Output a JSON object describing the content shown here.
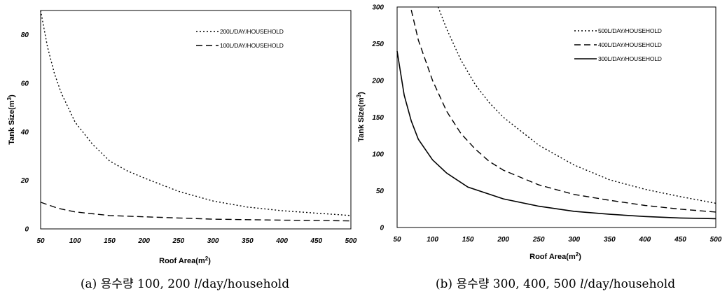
{
  "chart_data": [
    {
      "type": "line",
      "caption": "(a) 용수량 100, 200 l/day/household",
      "xlabel": "Roof Area(m²)",
      "ylabel": "Tank Size(m³)",
      "xlim": [
        50,
        500
      ],
      "ylim": [
        0,
        90
      ],
      "x_ticks": [
        50,
        100,
        150,
        200,
        250,
        300,
        350,
        400,
        450,
        500
      ],
      "y_ticks": [
        0,
        20,
        40,
        60,
        80
      ],
      "grid": false,
      "legend_position": "top-right",
      "series": [
        {
          "name": "200L/DAY/HOUSEHOLD",
          "style": "dotted",
          "x": [
            50,
            60,
            70,
            80,
            100,
            125,
            150,
            175,
            200,
            250,
            300,
            350,
            400,
            450,
            500
          ],
          "y": [
            90,
            75,
            64,
            56,
            44,
            35,
            28,
            24,
            21,
            15.5,
            11.5,
            9,
            7.5,
            6.5,
            5.5
          ]
        },
        {
          "name": "100L/DAY/HOUSEHOLD",
          "style": "dashed",
          "x": [
            50,
            75,
            100,
            150,
            200,
            250,
            300,
            350,
            400,
            450,
            500
          ],
          "y": [
            11,
            8.5,
            7,
            5.5,
            5,
            4.5,
            4,
            3.8,
            3.6,
            3.5,
            3.3
          ]
        }
      ]
    },
    {
      "type": "line",
      "caption": "(b) 용수량 300, 400, 500 l/day/household",
      "xlabel": "Roof Area(m²)",
      "ylabel": "Tank Size(m³)",
      "xlim": [
        50,
        500
      ],
      "ylim": [
        0,
        300
      ],
      "x_ticks": [
        50,
        100,
        150,
        200,
        250,
        300,
        350,
        400,
        450,
        500
      ],
      "y_ticks": [
        0,
        50,
        100,
        150,
        200,
        250,
        300
      ],
      "grid": false,
      "legend_position": "top-right",
      "series": [
        {
          "name": "500L/DAY/HOUSEHOLD",
          "style": "dotted",
          "x": [
            108,
            120,
            140,
            160,
            180,
            200,
            250,
            300,
            350,
            400,
            450,
            500
          ],
          "y": [
            300,
            270,
            228,
            195,
            170,
            150,
            112,
            85,
            65,
            52,
            42,
            33
          ]
        },
        {
          "name": "400L/DAY/HOUSEHOLD",
          "style": "dashed",
          "x": [
            70,
            80,
            100,
            120,
            140,
            160,
            180,
            200,
            250,
            300,
            350,
            400,
            450,
            500
          ],
          "y": [
            296,
            255,
            200,
            158,
            128,
            107,
            90,
            78,
            58,
            45,
            37,
            30,
            25,
            21
          ]
        },
        {
          "name": "300L/DAY/HOUSEHOLD",
          "style": "solid",
          "x": [
            50,
            60,
            70,
            80,
            100,
            120,
            150,
            200,
            250,
            300,
            350,
            400,
            450,
            500
          ],
          "y": [
            240,
            180,
            145,
            120,
            92,
            74,
            55,
            39,
            29,
            22,
            18,
            15,
            13,
            12
          ]
        }
      ]
    }
  ]
}
